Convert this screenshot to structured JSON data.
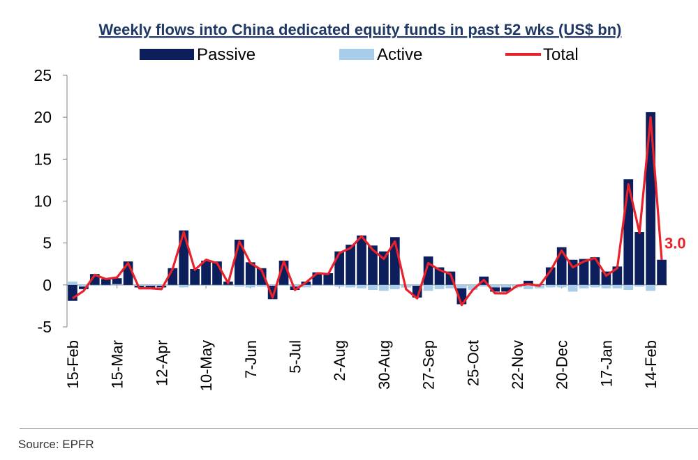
{
  "chart_data": {
    "type": "bar+line",
    "title": "Weekly flows into China dedicated equity funds in past 52 wks (US$ bn)",
    "xlabel": "",
    "ylabel": "",
    "ylim": [
      -5,
      25
    ],
    "yticks": [
      -5,
      0,
      5,
      10,
      15,
      20,
      25
    ],
    "grid": false,
    "legend_position": "top",
    "tick_labels": [
      "15-Feb",
      "15-Mar",
      "12-Apr",
      "10-May",
      "7-Jun",
      "5-Jul",
      "2-Aug",
      "30-Aug",
      "27-Sep",
      "25-Oct",
      "22-Nov",
      "20-Dec",
      "17-Jan",
      "14-Feb"
    ],
    "tick_label_week_index": [
      0,
      4,
      8,
      12,
      16,
      20,
      24,
      28,
      32,
      36,
      40,
      44,
      48,
      52
    ],
    "series": [
      {
        "name": "Passive",
        "type": "bar",
        "color": "#0c1e5b",
        "values": [
          -1.9,
          -0.5,
          1.3,
          0.7,
          0.8,
          2.8,
          -0.3,
          -0.4,
          -0.3,
          2.0,
          6.5,
          1.9,
          2.9,
          2.8,
          0.4,
          5.4,
          2.7,
          2.0,
          -1.7,
          2.9,
          -0.6,
          0.4,
          1.5,
          1.4,
          4.0,
          4.8,
          5.9,
          4.7,
          4.0,
          5.7,
          -0.3,
          -1.5,
          3.4,
          2.1,
          1.6,
          -2.3,
          -0.4,
          1.0,
          -0.8,
          -0.8,
          -0.2,
          0.5,
          0.1,
          2.1,
          4.5,
          3.0,
          3.1,
          3.3,
          1.6,
          2.2,
          12.6,
          6.3,
          20.6,
          3.0
        ]
      },
      {
        "name": "Active",
        "type": "bar",
        "color": "#a8cdea",
        "values": [
          0.4,
          -0.2,
          -0.1,
          -0.1,
          0.1,
          0.0,
          -0.1,
          -0.1,
          -0.1,
          -0.1,
          -0.3,
          -0.1,
          -0.1,
          -0.1,
          -0.1,
          -0.2,
          -0.3,
          -0.2,
          -0.1,
          -0.1,
          -0.2,
          -0.3,
          -0.1,
          -0.1,
          -0.2,
          -0.3,
          -0.4,
          -0.6,
          -0.7,
          -0.5,
          -0.3,
          -0.1,
          -0.7,
          -0.5,
          -0.4,
          -0.4,
          -0.6,
          -0.2,
          -0.3,
          -0.3,
          -0.3,
          -0.5,
          -0.4,
          -0.3,
          -0.3,
          -0.8,
          -0.4,
          -0.3,
          -0.4,
          -0.4,
          -0.6,
          -0.2,
          -0.7,
          0.0
        ]
      },
      {
        "name": "Total",
        "type": "line",
        "color": "#e8212a",
        "values": [
          -1.6,
          -0.7,
          1.2,
          0.7,
          0.9,
          2.6,
          -0.4,
          -0.4,
          -0.5,
          1.9,
          6.3,
          1.8,
          3.0,
          2.6,
          0.2,
          5.2,
          2.6,
          1.8,
          -1.5,
          2.8,
          -0.6,
          0.3,
          1.4,
          1.3,
          3.8,
          4.4,
          5.8,
          4.2,
          3.1,
          5.2,
          -0.5,
          -1.6,
          2.6,
          1.8,
          1.3,
          -2.4,
          -0.6,
          0.6,
          -1.0,
          -1.0,
          -0.1,
          0.1,
          -0.1,
          1.7,
          4.1,
          2.1,
          2.8,
          3.2,
          1.1,
          2.0,
          12.0,
          6.2,
          20.0,
          3.0
        ]
      }
    ],
    "annotations": [
      {
        "text": "3.0",
        "attach_to": "Total",
        "week_index": 53,
        "color": "#e8212a"
      }
    ]
  },
  "legend": {
    "items": [
      {
        "label": "Passive",
        "color": "#0c1e5b"
      },
      {
        "label": "Active",
        "color": "#a8cdea"
      },
      {
        "label": "Total",
        "color": "#e8212a"
      }
    ]
  },
  "source": "Source: EPFR"
}
